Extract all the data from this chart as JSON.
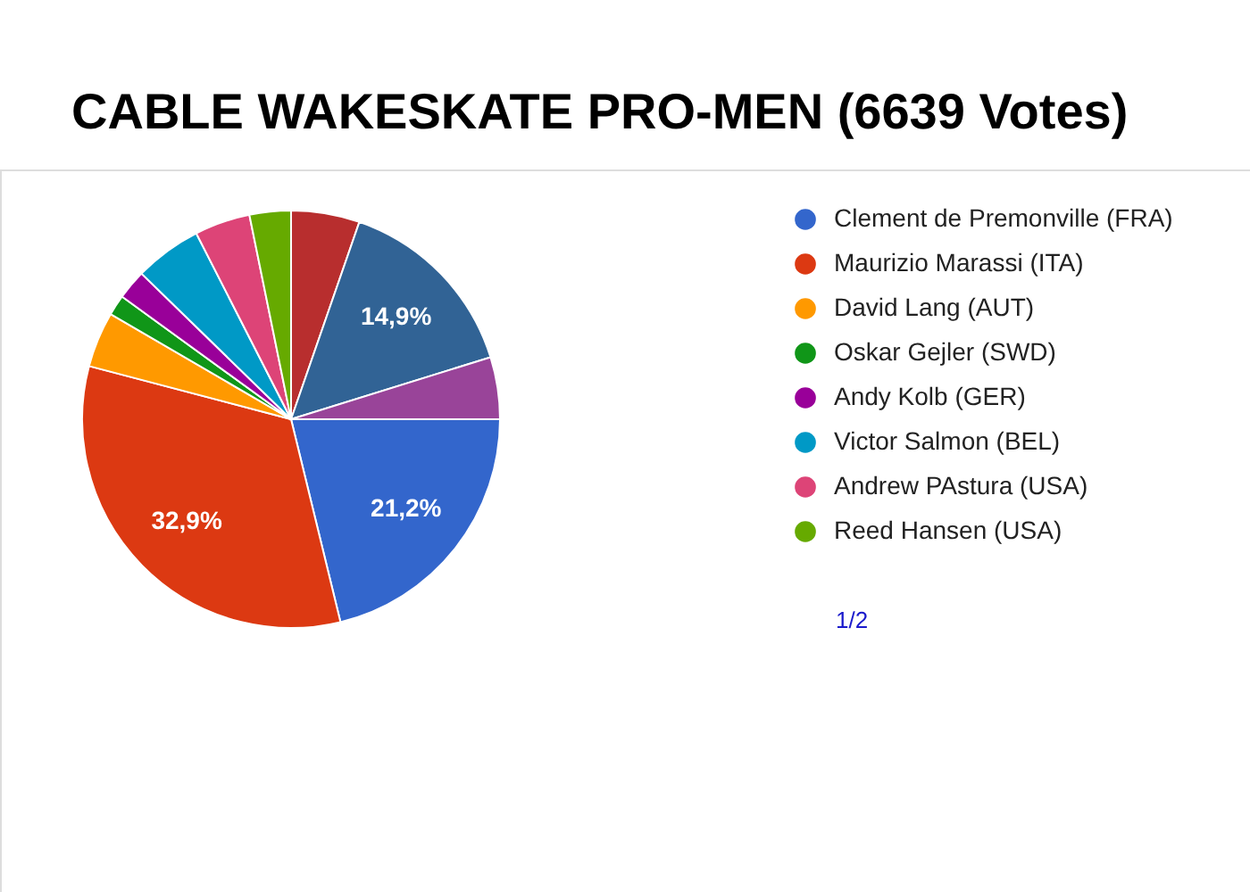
{
  "chart_data": {
    "type": "pie",
    "title": "CABLE WAKESKATE PRO-MEN (6639 Votes)",
    "categories": [
      "Clement de Premonville (FRA)",
      "Maurizio Marassi (ITA)",
      "David Lang (AUT)",
      "Oskar Gejler (SWD)",
      "Andy Kolb (GER)",
      "Victor Salmon (BEL)",
      "Andrew PAstura (USA)",
      "Reed Hansen (USA)",
      null,
      null,
      null
    ],
    "values": [
      21.2,
      32.9,
      4.3,
      1.6,
      2.3,
      5.2,
      4.3,
      3.2,
      5.3,
      14.9,
      4.8
    ],
    "colors": [
      "#3366cc",
      "#dc3912",
      "#ff9900",
      "#109618",
      "#990099",
      "#0099c6",
      "#dd4477",
      "#66aa00",
      "#b82e2e",
      "#316395",
      "#994499"
    ],
    "value_labels": [
      "21,2%",
      "32,9%",
      null,
      null,
      null,
      null,
      null,
      null,
      null,
      "14,9%",
      null
    ],
    "legend": "right",
    "annotations": [
      "1/2"
    ]
  }
}
